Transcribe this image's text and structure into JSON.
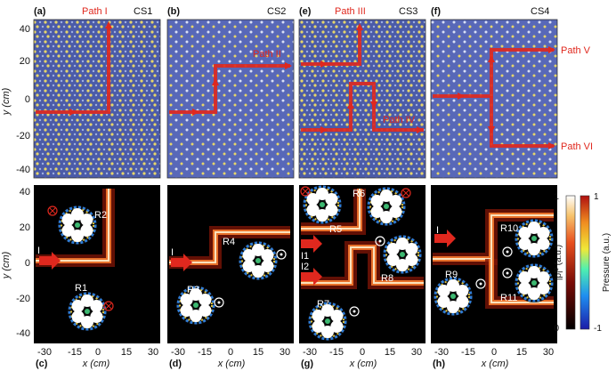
{
  "figure": {
    "top_panels": [
      {
        "id": "a",
        "label": "(a)",
        "cs": "CS1",
        "paths": [
          "Path I"
        ]
      },
      {
        "id": "b",
        "label": "(b)",
        "cs": "CS2",
        "paths": [
          "Path II"
        ]
      },
      {
        "id": "e",
        "label": "(e)",
        "cs": "CS3",
        "paths": [
          "Path III",
          "Path IV"
        ]
      },
      {
        "id": "f",
        "label": "(f)",
        "cs": "CS4",
        "paths": [
          "Path V",
          "Path VI"
        ]
      }
    ],
    "bottom_panels": [
      {
        "id": "c",
        "label": "(c)",
        "sources": [
          "I"
        ],
        "resonators": [
          "R1",
          "R2"
        ]
      },
      {
        "id": "d",
        "label": "(d)",
        "sources": [
          "I"
        ],
        "resonators": [
          "R3",
          "R4"
        ]
      },
      {
        "id": "g",
        "label": "(g)",
        "sources": [
          "I1",
          "I2"
        ],
        "resonators": [
          "R5",
          "R6",
          "R7",
          "R8"
        ]
      },
      {
        "id": "h",
        "label": "(h)",
        "sources": [
          "I"
        ],
        "resonators": [
          "R9",
          "R10",
          "R11"
        ]
      }
    ],
    "y_axis_title": "y (cm)",
    "x_axis_title": "x (cm)",
    "y_ticks_top": [
      "40",
      "20",
      "0",
      "-20",
      "-40"
    ],
    "y_ticks_bottom": [
      "40",
      "20",
      "0",
      "-20",
      "-40"
    ],
    "x_ticks": [
      "-30",
      "-15",
      "0",
      "15",
      "30"
    ],
    "colorbar_intensity": {
      "label": "|p|² (a.u.)",
      "max": "1",
      "min": "0",
      "colors": [
        "#000000",
        "#7a0b06",
        "#e8501e",
        "#f7c36b",
        "#ffffff"
      ]
    },
    "colorbar_pressure": {
      "label": "Pressure (a.u.)",
      "max": "1",
      "min": "-1",
      "colors": [
        "#1c1ca8",
        "#1f8ef0",
        "#4ff0b0",
        "#f0e838",
        "#f08c20",
        "#b01010"
      ]
    },
    "colors": {
      "lattice_bg": "#4757a8",
      "lattice_dot": "#e8d868",
      "path": "#e0281e",
      "field_bg": "#000000"
    }
  }
}
